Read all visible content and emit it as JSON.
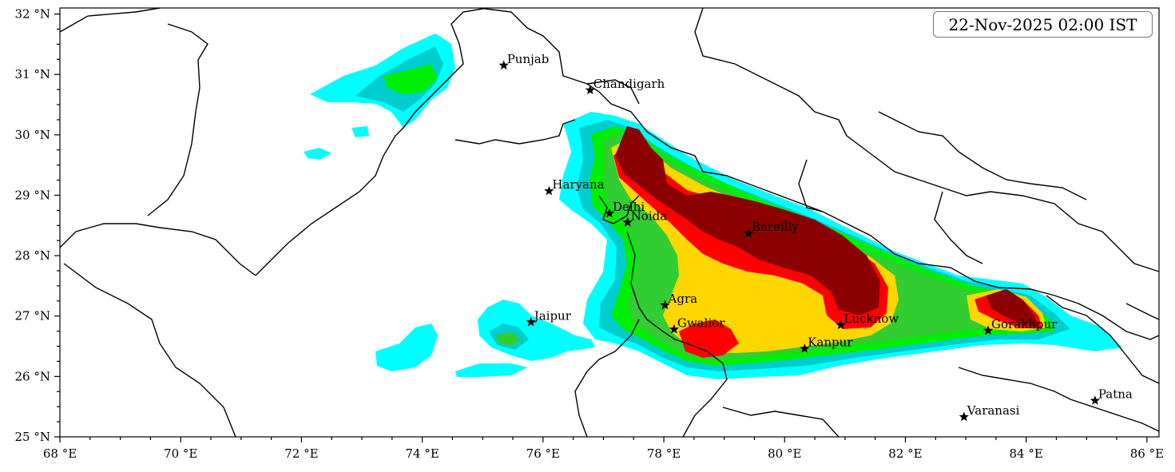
{
  "timestamp": "22-Nov-2025 02:00 IST",
  "axes": {
    "lon_labels": [
      "68 °E",
      "70 °E",
      "72 °E",
      "74 °E",
      "76 °E",
      "78 °E",
      "80 °E",
      "82 °E",
      "84 °E",
      "86 °E"
    ],
    "lat_labels": [
      "25 °N",
      "26 °N",
      "27 °N",
      "28 °N",
      "29 °N",
      "30 °N",
      "31 °N",
      "32 °N"
    ],
    "lon_range": [
      68,
      86.2
    ],
    "lat_range": [
      25,
      32.1
    ]
  },
  "colors": {
    "level1": "#00ffff",
    "level2": "#00cdcd",
    "level3": "#00ee00",
    "level4": "#32cd32",
    "level5": "#ffd700",
    "level6": "#ff0000",
    "level7": "#8b0000"
  },
  "cities": [
    {
      "name": "Punjab",
      "lon": 75.35,
      "lat": 31.15
    },
    {
      "name": "Chandigarh",
      "lon": 76.78,
      "lat": 30.74
    },
    {
      "name": "Haryana",
      "lon": 76.1,
      "lat": 29.07
    },
    {
      "name": "Delhi",
      "lon": 77.1,
      "lat": 28.7
    },
    {
      "name": "Noida",
      "lon": 77.4,
      "lat": 28.55
    },
    {
      "name": "Bareilly",
      "lon": 79.4,
      "lat": 28.37
    },
    {
      "name": "Agra",
      "lon": 78.02,
      "lat": 27.18
    },
    {
      "name": "Jaipur",
      "lon": 75.8,
      "lat": 26.9
    },
    {
      "name": "Gwalior",
      "lon": 78.17,
      "lat": 26.78
    },
    {
      "name": "Lucknow",
      "lon": 80.93,
      "lat": 26.85
    },
    {
      "name": "Kanpur",
      "lon": 80.33,
      "lat": 26.46
    },
    {
      "name": "Gorakhpur",
      "lon": 83.37,
      "lat": 26.76
    },
    {
      "name": "Varanasi",
      "lon": 82.97,
      "lat": 25.33
    },
    {
      "name": "Patna",
      "lon": 85.14,
      "lat": 25.6
    }
  ]
}
